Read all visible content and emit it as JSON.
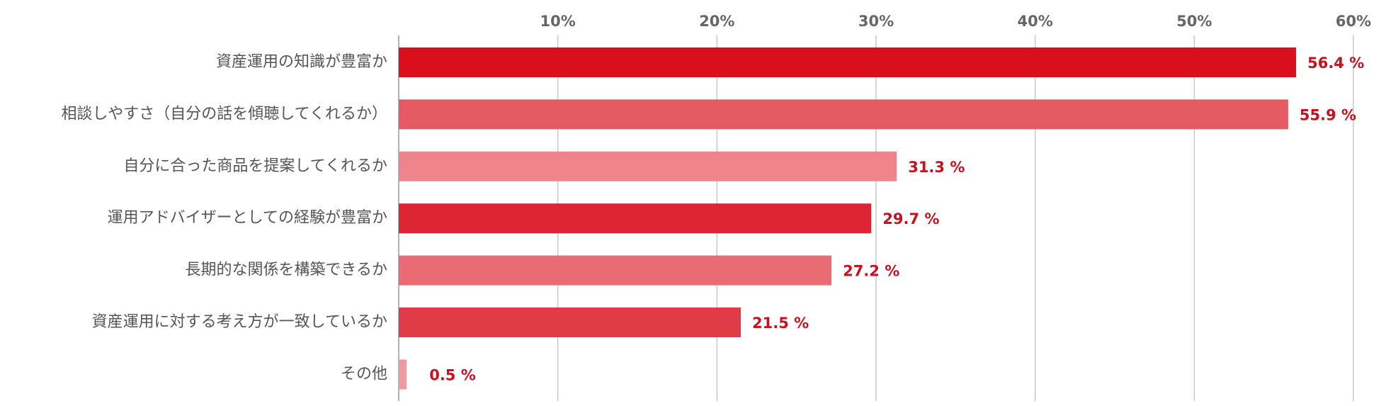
{
  "chart_data": {
    "type": "bar",
    "orientation": "horizontal",
    "categories": [
      "資産運用の知識が豊富か",
      "相談しやすさ（自分の話を傾聴してくれるか）",
      "自分に合った商品を提案してくれるか",
      "運用アドバイザーとしての経験が豊富か",
      "長期的な関係を構築できるか",
      "資産運用に対する考え方が一致しているか",
      "その他"
    ],
    "values": [
      56.4,
      55.9,
      31.3,
      29.7,
      27.2,
      21.5,
      0.5
    ],
    "value_labels": [
      "56.4 %",
      "55.9 %",
      "31.3 %",
      "29.7 %",
      "27.2 %",
      "21.5 %",
      "0.5 %"
    ],
    "colors": [
      "#d90f1c",
      "#e45a63",
      "#ee858c",
      "#dc2433",
      "#e96c74",
      "#df3c47",
      "#f09aa0"
    ],
    "xlim": [
      0,
      60
    ],
    "xticks": [
      {
        "value": 10,
        "label": "10%"
      },
      {
        "value": 20,
        "label": "20%"
      },
      {
        "value": 30,
        "label": "30%"
      },
      {
        "value": 40,
        "label": "40%"
      },
      {
        "value": 50,
        "label": "50%"
      },
      {
        "value": 60,
        "label": "60%"
      }
    ],
    "grid": true
  }
}
